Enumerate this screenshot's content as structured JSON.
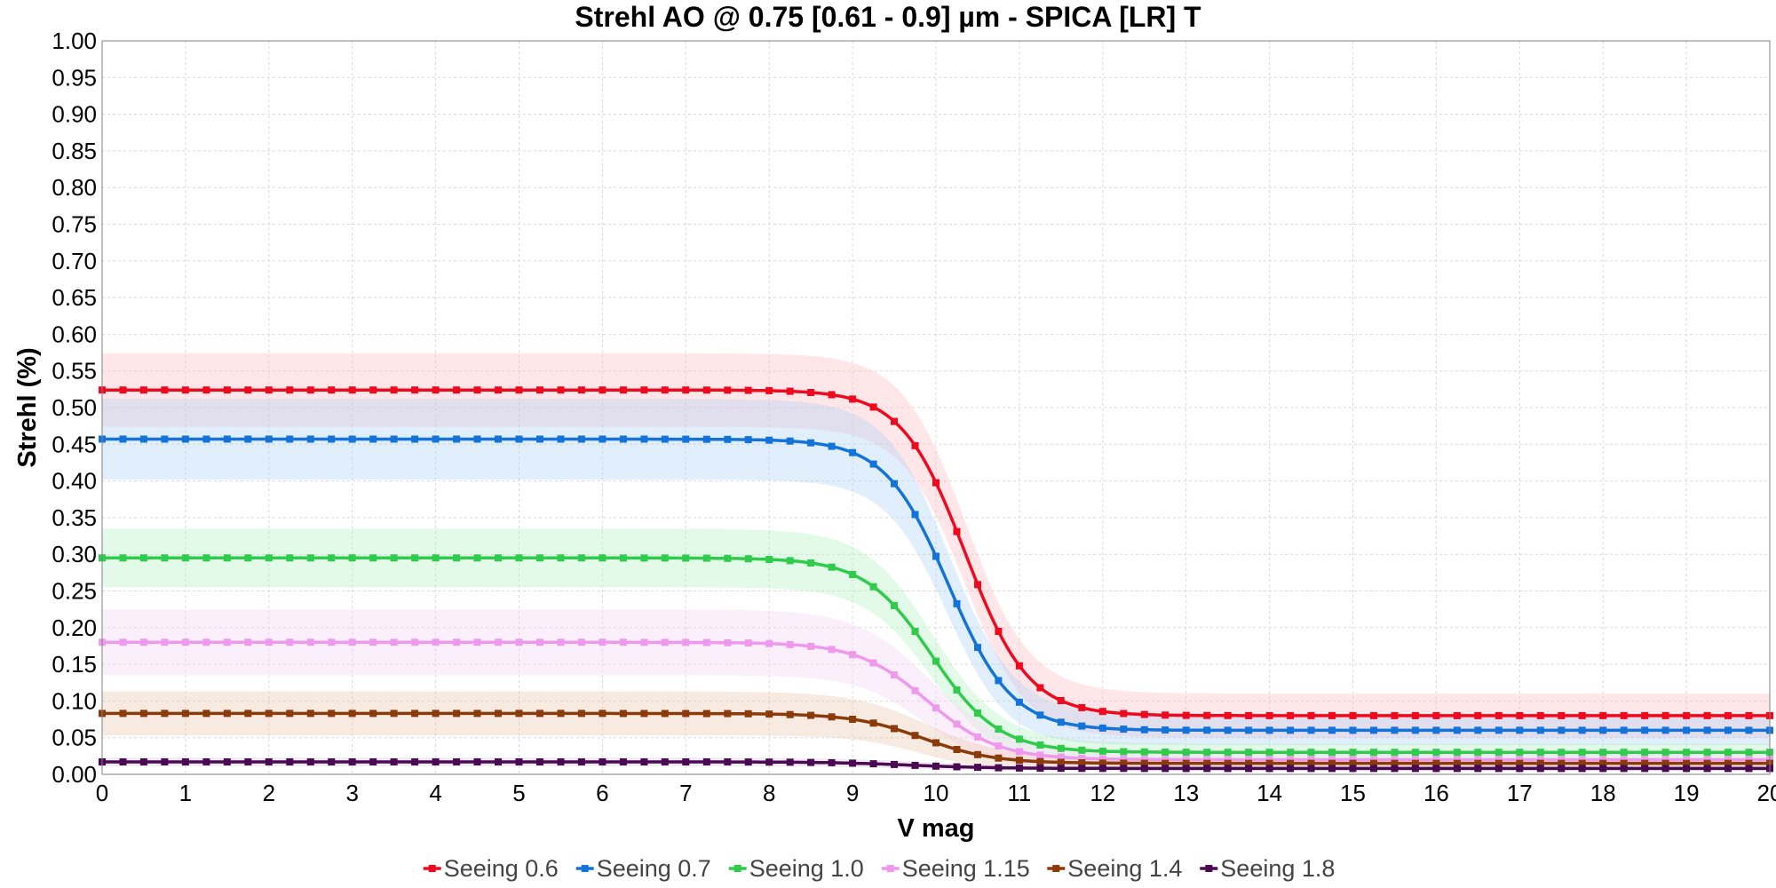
{
  "chart_data": {
    "type": "line",
    "title": "Strehl AO @ 0.75 [0.61 - 0.9] µm - SPICA [LR] T",
    "xlabel": "V mag",
    "ylabel": "Strehl (%)",
    "xlim": [
      0,
      20
    ],
    "ylim": [
      0,
      1
    ],
    "x_ticks": [
      "0",
      "1",
      "2",
      "3",
      "4",
      "5",
      "6",
      "7",
      "8",
      "9",
      "10",
      "11",
      "12",
      "13",
      "14",
      "15",
      "16",
      "17",
      "18",
      "19",
      "20"
    ],
    "y_ticks": [
      "0.00",
      "0.05",
      "0.10",
      "0.15",
      "0.20",
      "0.25",
      "0.30",
      "0.35",
      "0.40",
      "0.45",
      "0.50",
      "0.55",
      "0.60",
      "0.65",
      "0.70",
      "0.75",
      "0.80",
      "0.85",
      "0.90",
      "0.95",
      "1.00"
    ],
    "grid": true,
    "legend_position": "bottom-center",
    "x": [
      0,
      0.25,
      0.5,
      0.75,
      1,
      1.25,
      1.5,
      1.75,
      2,
      2.25,
      2.5,
      2.75,
      3,
      3.25,
      3.5,
      3.75,
      4,
      4.25,
      4.5,
      4.75,
      5,
      5.25,
      5.5,
      5.75,
      6,
      6.25,
      6.5,
      6.75,
      7,
      7.25,
      7.5,
      7.75,
      8,
      8.25,
      8.5,
      8.75,
      9,
      9.25,
      9.5,
      9.75,
      10,
      10.25,
      10.5,
      10.75,
      11,
      11.25,
      11.5,
      11.75,
      12,
      12.25,
      12.5,
      12.75,
      13,
      13.25,
      13.5,
      13.75,
      14,
      14.25,
      14.5,
      14.75,
      15,
      15.25,
      15.5,
      15.75,
      16,
      16.25,
      16.5,
      16.75,
      17,
      17.25,
      17.5,
      17.75,
      18,
      18.25,
      18.5,
      18.75,
      19,
      19.25,
      19.5,
      19.75,
      20
    ],
    "series": [
      {
        "name": "Seeing 0.6",
        "color": "#ee0a1e",
        "band_color": "#ffb6c0",
        "plateau": 0.524,
        "floor": 0.08,
        "band_half": 0.05,
        "floor_band_half": 0.03,
        "mid": 10.35,
        "width": 0.38
      },
      {
        "name": "Seeing 0.7",
        "color": "#1473d9",
        "band_color": "#a8cdf5",
        "plateau": 0.457,
        "floor": 0.06,
        "band_half": 0.055,
        "floor_band_half": 0.02,
        "mid": 10.15,
        "width": 0.38
      },
      {
        "name": "Seeing 1.0",
        "color": "#2ecc4a",
        "band_color": "#aef0bc",
        "plateau": 0.295,
        "floor": 0.03,
        "band_half": 0.04,
        "floor_band_half": 0.012,
        "mid": 9.95,
        "width": 0.4
      },
      {
        "name": "Seeing 1.15",
        "color": "#ee99ee",
        "band_color": "#f7d0f7",
        "plateau": 0.18,
        "floor": 0.02,
        "band_half": 0.045,
        "floor_band_half": 0.01,
        "mid": 9.9,
        "width": 0.42
      },
      {
        "name": "Seeing 1.4",
        "color": "#8b3a0a",
        "band_color": "#e8c2a8",
        "plateau": 0.083,
        "floor": 0.015,
        "band_half": 0.03,
        "floor_band_half": 0.006,
        "mid": 9.85,
        "width": 0.42
      },
      {
        "name": "Seeing 1.8",
        "color": "#4a0a52",
        "band_color": "#d7c6dc",
        "plateau": 0.017,
        "floor": 0.008,
        "band_half": 0.006,
        "floor_band_half": 0.003,
        "mid": 9.7,
        "width": 0.5
      }
    ]
  }
}
